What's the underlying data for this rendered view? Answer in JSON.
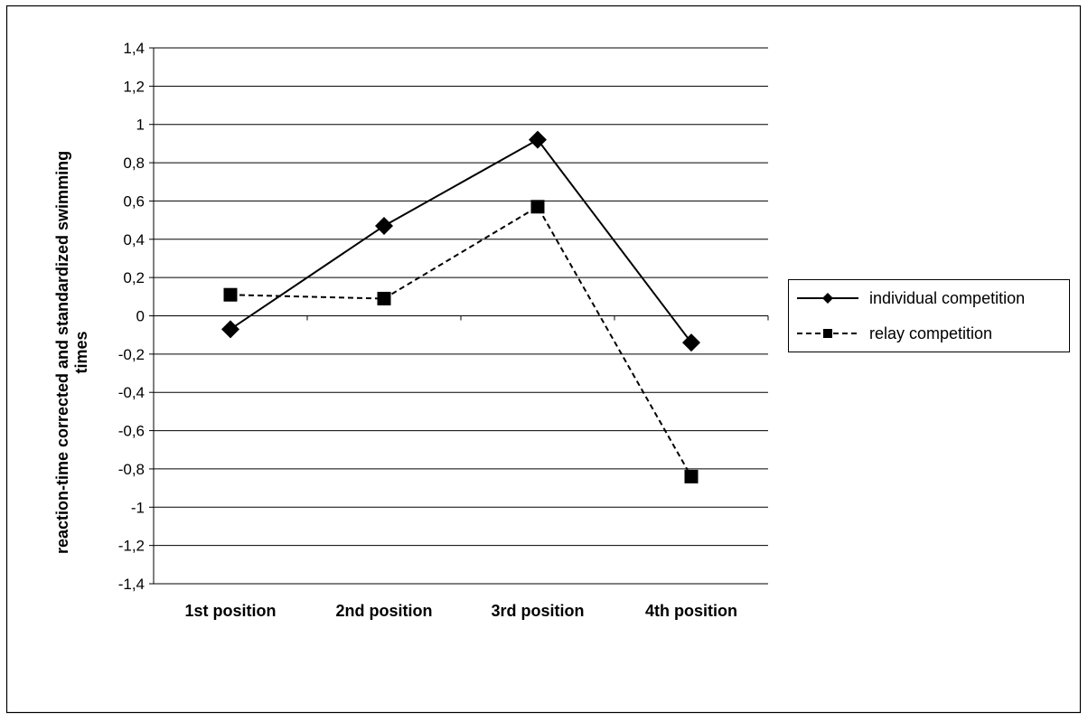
{
  "chart_data": {
    "type": "line",
    "title": "",
    "xlabel": "",
    "ylabel_line1": "reaction-time corrected and standardized swimming",
    "ylabel_line2": "times",
    "categories": [
      "1st position",
      "2nd position",
      "3rd position",
      "4th position"
    ],
    "ylim": [
      -1.4,
      1.4
    ],
    "yticks": [
      1.4,
      1.2,
      1,
      0.8,
      0.6,
      0.4,
      0.2,
      0,
      -0.2,
      -0.4,
      -0.6,
      -0.8,
      -1,
      -1.2,
      -1.4
    ],
    "ytick_labels": [
      "1,4",
      "1,2",
      "1",
      "0,8",
      "0,6",
      "0,4",
      "0,2",
      "0",
      "-0,2",
      "-0,4",
      "-0,6",
      "-0,8",
      "-1",
      "-1,2",
      "-1,4"
    ],
    "grid": true,
    "legend_position": "right",
    "series": [
      {
        "name": "individual competition",
        "marker": "diamond",
        "line_style": "solid",
        "color": "#000000",
        "values": [
          -0.07,
          0.47,
          0.92,
          -0.14
        ]
      },
      {
        "name": "relay competition",
        "marker": "square",
        "line_style": "dashed",
        "color": "#000000",
        "values": [
          0.11,
          0.09,
          0.57,
          -0.84
        ]
      }
    ]
  }
}
